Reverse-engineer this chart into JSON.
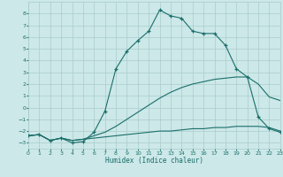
{
  "bg_color": "#cce8e8",
  "grid_color": "#aacccc",
  "line_color": "#1a6e6a",
  "xlabel": "Humidex (Indice chaleur)",
  "xlim": [
    0,
    23
  ],
  "ylim": [
    -3.5,
    9.0
  ],
  "yticks": [
    -3,
    -2,
    -1,
    0,
    1,
    2,
    3,
    4,
    5,
    6,
    7,
    8
  ],
  "xticks": [
    0,
    1,
    2,
    3,
    4,
    5,
    6,
    7,
    8,
    9,
    10,
    11,
    12,
    13,
    14,
    15,
    16,
    17,
    18,
    19,
    20,
    21,
    22,
    23
  ],
  "s1_x": [
    0,
    1,
    2,
    3,
    4,
    5,
    6,
    7,
    8,
    9,
    10,
    11,
    12,
    13,
    14,
    15,
    16,
    17,
    18,
    19,
    20,
    21,
    22,
    23
  ],
  "s1_y": [
    -2.4,
    -2.3,
    -2.8,
    -2.6,
    -2.8,
    -2.7,
    -2.6,
    -2.5,
    -2.4,
    -2.3,
    -2.2,
    -2.1,
    -2.0,
    -2.0,
    -1.9,
    -1.8,
    -1.8,
    -1.7,
    -1.7,
    -1.6,
    -1.6,
    -1.6,
    -1.7,
    -2.0
  ],
  "s2_x": [
    0,
    1,
    2,
    3,
    4,
    5,
    6,
    7,
    8,
    9,
    10,
    11,
    12,
    13,
    14,
    15,
    16,
    17,
    18,
    19,
    20,
    21,
    22,
    23
  ],
  "s2_y": [
    -2.4,
    -2.3,
    -2.8,
    -2.6,
    -2.8,
    -2.7,
    -2.4,
    -2.1,
    -1.6,
    -1.0,
    -0.4,
    0.2,
    0.8,
    1.3,
    1.7,
    2.0,
    2.2,
    2.4,
    2.5,
    2.6,
    2.6,
    2.0,
    0.9,
    0.6
  ],
  "s3_x": [
    0,
    1,
    2,
    3,
    4,
    5,
    6,
    7,
    8,
    9,
    10,
    11,
    12,
    13,
    14,
    15,
    16,
    17,
    18,
    19,
    20,
    21,
    22,
    23
  ],
  "s3_y": [
    -2.4,
    -2.3,
    -2.8,
    -2.6,
    -3.0,
    -2.9,
    -2.1,
    -0.3,
    3.3,
    4.8,
    5.7,
    6.5,
    8.3,
    7.8,
    7.6,
    6.5,
    6.3,
    6.3,
    5.3,
    3.3,
    2.6,
    -0.8,
    -1.8,
    -2.1
  ]
}
